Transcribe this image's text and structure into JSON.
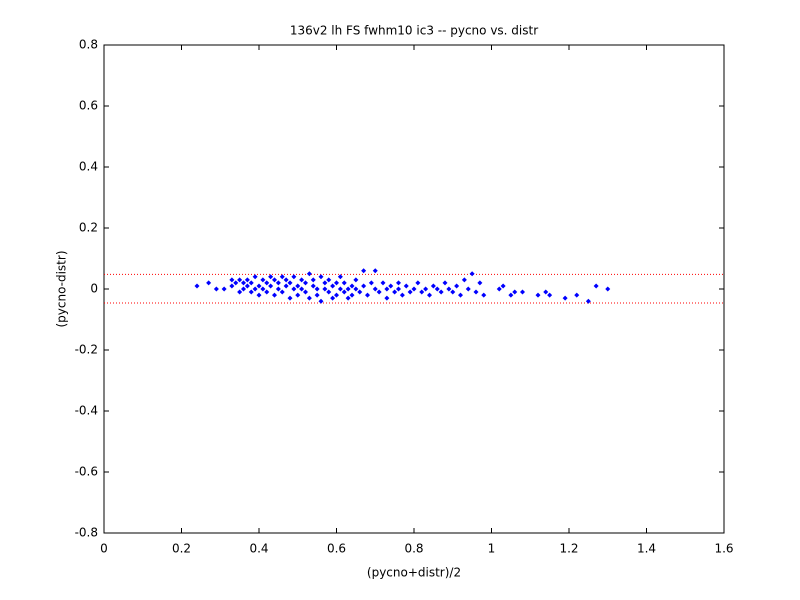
{
  "chart_data": {
    "type": "scatter",
    "title": "136v2 lh FS fwhm10 ic3 -- pycno vs. distr",
    "xlabel": "(pycno+distr)/2",
    "ylabel": "(pycno-distr)",
    "color": "#0000ff",
    "x": [
      0.24,
      0.27,
      0.29,
      0.31,
      0.33,
      0.33,
      0.34,
      0.35,
      0.35,
      0.36,
      0.36,
      0.37,
      0.37,
      0.38,
      0.38,
      0.39,
      0.39,
      0.4,
      0.4,
      0.41,
      0.41,
      0.42,
      0.42,
      0.43,
      0.43,
      0.44,
      0.44,
      0.45,
      0.45,
      0.46,
      0.46,
      0.47,
      0.47,
      0.48,
      0.48,
      0.49,
      0.49,
      0.5,
      0.5,
      0.51,
      0.51,
      0.52,
      0.52,
      0.53,
      0.53,
      0.54,
      0.54,
      0.55,
      0.55,
      0.56,
      0.56,
      0.57,
      0.57,
      0.58,
      0.58,
      0.59,
      0.59,
      0.6,
      0.6,
      0.61,
      0.61,
      0.62,
      0.62,
      0.63,
      0.63,
      0.64,
      0.64,
      0.65,
      0.65,
      0.66,
      0.67,
      0.67,
      0.68,
      0.69,
      0.7,
      0.7,
      0.71,
      0.72,
      0.73,
      0.73,
      0.74,
      0.75,
      0.76,
      0.76,
      0.77,
      0.78,
      0.79,
      0.8,
      0.81,
      0.82,
      0.83,
      0.84,
      0.85,
      0.86,
      0.87,
      0.88,
      0.89,
      0.9,
      0.91,
      0.92,
      0.93,
      0.94,
      0.95,
      0.96,
      0.97,
      0.98,
      1.02,
      1.03,
      1.05,
      1.06,
      1.08,
      1.12,
      1.14,
      1.15,
      1.19,
      1.22,
      1.25,
      1.27,
      1.3
    ],
    "values": [
      0.01,
      0.02,
      0.0,
      0.0,
      0.03,
      0.01,
      0.02,
      -0.01,
      0.03,
      0.02,
      0.0,
      0.01,
      0.03,
      -0.01,
      0.02,
      0.0,
      0.04,
      0.01,
      -0.02,
      0.03,
      0.0,
      0.02,
      -0.01,
      0.04,
      0.01,
      0.03,
      -0.02,
      0.0,
      0.02,
      0.04,
      -0.01,
      0.01,
      0.03,
      -0.03,
      0.02,
      0.0,
      0.04,
      0.01,
      -0.02,
      0.03,
      0.0,
      -0.01,
      0.02,
      0.05,
      -0.03,
      0.01,
      0.03,
      -0.02,
      0.0,
      0.04,
      -0.04,
      0.02,
      0.0,
      -0.01,
      0.03,
      0.01,
      -0.03,
      0.02,
      -0.02,
      0.0,
      0.04,
      -0.01,
      0.02,
      -0.03,
      0.0,
      0.01,
      -0.02,
      0.03,
      0.0,
      -0.01,
      0.06,
      0.01,
      -0.02,
      0.02,
      0.0,
      0.06,
      -0.01,
      0.02,
      0.0,
      -0.03,
      0.01,
      -0.01,
      0.02,
      0.0,
      -0.02,
      0.01,
      -0.01,
      0.0,
      0.02,
      -0.01,
      0.0,
      -0.02,
      0.01,
      0.0,
      -0.01,
      0.02,
      0.0,
      -0.01,
      0.01,
      -0.02,
      0.03,
      0.0,
      0.05,
      -0.01,
      0.02,
      -0.02,
      0.0,
      0.01,
      -0.02,
      -0.01,
      -0.01,
      -0.02,
      -0.01,
      -0.02,
      -0.03,
      -0.02,
      -0.04,
      0.01,
      0.0
    ],
    "reference_lines": [
      {
        "value": 0.048,
        "color": "#ff0000"
      },
      {
        "value": -0.046,
        "color": "#ff0000"
      }
    ],
    "xlim": [
      0,
      1.6
    ],
    "xticks": [
      0,
      0.2,
      0.4,
      0.6,
      0.8,
      1,
      1.2,
      1.4,
      1.6
    ],
    "ylim": [
      -0.8,
      0.8
    ],
    "yticks": [
      -0.8,
      -0.6,
      -0.4,
      -0.2,
      0,
      0.2,
      0.4,
      0.6,
      0.8
    ],
    "grid": false
  }
}
